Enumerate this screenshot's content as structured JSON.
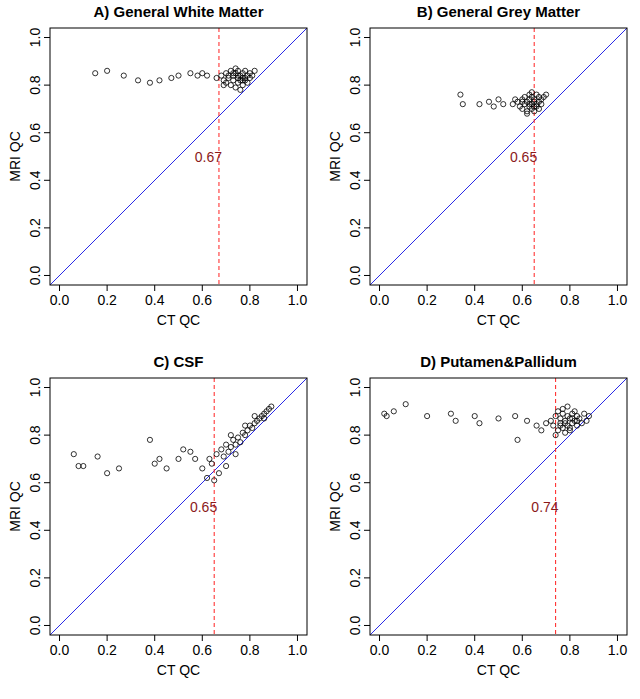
{
  "chart_data": [
    {
      "type": "scatter",
      "title": "A) General White Matter",
      "x_label": "CT QC",
      "y_label": "MRI QC",
      "x": [
        0.15,
        0.2,
        0.27,
        0.33,
        0.38,
        0.42,
        0.47,
        0.5,
        0.55,
        0.58,
        0.6,
        0.62,
        0.66,
        0.68,
        0.69,
        0.7,
        0.7,
        0.71,
        0.72,
        0.72,
        0.73,
        0.73,
        0.74,
        0.74,
        0.75,
        0.75,
        0.75,
        0.76,
        0.76,
        0.77,
        0.77,
        0.77,
        0.78,
        0.78,
        0.79,
        0.79,
        0.8,
        0.8,
        0.81,
        0.82,
        0.71,
        0.74,
        0.76,
        0.78,
        0.73,
        0.69,
        0.75,
        0.77
      ],
      "y": [
        0.85,
        0.86,
        0.84,
        0.82,
        0.81,
        0.82,
        0.83,
        0.84,
        0.85,
        0.84,
        0.85,
        0.84,
        0.83,
        0.84,
        0.82,
        0.85,
        0.81,
        0.83,
        0.86,
        0.8,
        0.84,
        0.82,
        0.85,
        0.79,
        0.83,
        0.86,
        0.81,
        0.84,
        0.82,
        0.85,
        0.83,
        0.8,
        0.86,
        0.82,
        0.84,
        0.81,
        0.85,
        0.83,
        0.84,
        0.86,
        0.84,
        0.87,
        0.78,
        0.83,
        0.85,
        0.8,
        0.84,
        0.82
      ],
      "xlim": [
        -0.04,
        1.04
      ],
      "ylim": [
        -0.04,
        1.04
      ],
      "xticks": [
        {
          "value": 0,
          "label": "0.0"
        },
        0.2,
        0.4,
        0.6,
        0.8,
        {
          "value": 1,
          "label": "1.0"
        }
      ],
      "yticks": [
        {
          "value": 0,
          "label": "0.0"
        },
        0.2,
        0.4,
        0.6,
        0.8,
        {
          "value": 1,
          "label": "1.0"
        }
      ],
      "threshold": {
        "value": 0.67,
        "label": "0.67"
      },
      "color": "#000000",
      "marker": "circle",
      "grid": false
    },
    {
      "type": "scatter",
      "title": "B) General Grey Matter",
      "x_label": "CT QC",
      "y_label": "MRI QC",
      "x": [
        0.34,
        0.35,
        0.42,
        0.46,
        0.48,
        0.5,
        0.52,
        0.56,
        0.58,
        0.59,
        0.6,
        0.6,
        0.61,
        0.61,
        0.62,
        0.62,
        0.63,
        0.63,
        0.63,
        0.64,
        0.64,
        0.64,
        0.65,
        0.65,
        0.65,
        0.66,
        0.66,
        0.67,
        0.67,
        0.68,
        0.68,
        0.69,
        0.7,
        0.62,
        0.64,
        0.66,
        0.6,
        0.57,
        0.63,
        0.65,
        0.67
      ],
      "y": [
        0.76,
        0.72,
        0.72,
        0.73,
        0.71,
        0.74,
        0.72,
        0.72,
        0.73,
        0.71,
        0.74,
        0.7,
        0.72,
        0.75,
        0.73,
        0.69,
        0.71,
        0.74,
        0.76,
        0.72,
        0.7,
        0.75,
        0.73,
        0.71,
        0.74,
        0.72,
        0.76,
        0.73,
        0.7,
        0.74,
        0.72,
        0.75,
        0.76,
        0.68,
        0.77,
        0.71,
        0.73,
        0.74,
        0.72,
        0.69,
        0.75
      ],
      "xlim": [
        -0.04,
        1.04
      ],
      "ylim": [
        -0.04,
        1.04
      ],
      "xticks": [
        {
          "value": 0,
          "label": "0.0"
        },
        0.2,
        0.4,
        0.6,
        0.8,
        {
          "value": 1,
          "label": "1.0"
        }
      ],
      "yticks": [
        {
          "value": 0,
          "label": "0.0"
        },
        0.2,
        0.4,
        0.6,
        0.8,
        {
          "value": 1,
          "label": "1.0"
        }
      ],
      "threshold": {
        "value": 0.65,
        "label": "0.65"
      },
      "color": "#000000",
      "marker": "circle",
      "grid": false
    },
    {
      "type": "scatter",
      "title": "C) CSF",
      "x_label": "CT QC",
      "y_label": "MRI QC",
      "x": [
        0.06,
        0.08,
        0.1,
        0.16,
        0.2,
        0.25,
        0.38,
        0.4,
        0.42,
        0.45,
        0.5,
        0.52,
        0.55,
        0.57,
        0.6,
        0.62,
        0.63,
        0.64,
        0.66,
        0.67,
        0.68,
        0.69,
        0.7,
        0.71,
        0.72,
        0.73,
        0.74,
        0.75,
        0.76,
        0.77,
        0.78,
        0.79,
        0.8,
        0.81,
        0.82,
        0.83,
        0.84,
        0.85,
        0.86,
        0.87,
        0.88,
        0.89,
        0.7,
        0.74,
        0.78,
        0.82,
        0.86,
        0.65,
        0.72
      ],
      "y": [
        0.72,
        0.67,
        0.67,
        0.71,
        0.64,
        0.66,
        0.78,
        0.68,
        0.7,
        0.66,
        0.7,
        0.74,
        0.73,
        0.7,
        0.66,
        0.62,
        0.7,
        0.68,
        0.72,
        0.64,
        0.74,
        0.71,
        0.76,
        0.73,
        0.75,
        0.78,
        0.76,
        0.79,
        0.77,
        0.81,
        0.8,
        0.82,
        0.84,
        0.83,
        0.85,
        0.86,
        0.87,
        0.88,
        0.89,
        0.9,
        0.91,
        0.92,
        0.67,
        0.72,
        0.84,
        0.88,
        0.87,
        0.61,
        0.8
      ],
      "xlim": [
        -0.04,
        1.04
      ],
      "ylim": [
        -0.04,
        1.04
      ],
      "xticks": [
        {
          "value": 0,
          "label": "0.0"
        },
        0.2,
        0.4,
        0.6,
        0.8,
        {
          "value": 1,
          "label": "1.0"
        }
      ],
      "yticks": [
        {
          "value": 0,
          "label": "0.0"
        },
        0.2,
        0.4,
        0.6,
        0.8,
        {
          "value": 1,
          "label": "1.0"
        }
      ],
      "threshold": {
        "value": 0.65,
        "label": "0.65"
      },
      "color": "#000000",
      "marker": "circle",
      "grid": false
    },
    {
      "type": "scatter",
      "title": "D) Putamen&Pallidum",
      "x_label": "CT QC",
      "y_label": "MRI QC",
      "x": [
        0.02,
        0.03,
        0.06,
        0.11,
        0.2,
        0.3,
        0.32,
        0.4,
        0.42,
        0.5,
        0.57,
        0.58,
        0.62,
        0.66,
        0.68,
        0.7,
        0.72,
        0.73,
        0.74,
        0.75,
        0.75,
        0.76,
        0.76,
        0.77,
        0.77,
        0.78,
        0.78,
        0.79,
        0.79,
        0.8,
        0.8,
        0.81,
        0.81,
        0.82,
        0.82,
        0.83,
        0.83,
        0.84,
        0.85,
        0.86,
        0.87,
        0.88,
        0.74,
        0.77,
        0.8,
        0.83,
        0.79,
        0.76,
        0.81,
        0.78
      ],
      "y": [
        0.89,
        0.88,
        0.9,
        0.93,
        0.88,
        0.89,
        0.86,
        0.88,
        0.85,
        0.87,
        0.88,
        0.78,
        0.86,
        0.84,
        0.82,
        0.85,
        0.86,
        0.84,
        0.88,
        0.82,
        0.9,
        0.85,
        0.87,
        0.83,
        0.89,
        0.86,
        0.81,
        0.88,
        0.84,
        0.87,
        0.82,
        0.89,
        0.85,
        0.86,
        0.9,
        0.84,
        0.88,
        0.87,
        0.85,
        0.89,
        0.86,
        0.88,
        0.8,
        0.91,
        0.83,
        0.86,
        0.92,
        0.84,
        0.87,
        0.85
      ],
      "xlim": [
        -0.04,
        1.04
      ],
      "ylim": [
        -0.04,
        1.04
      ],
      "xticks": [
        {
          "value": 0,
          "label": "0.0"
        },
        0.2,
        0.4,
        0.6,
        0.8,
        {
          "value": 1,
          "label": "1.0"
        }
      ],
      "yticks": [
        {
          "value": 0,
          "label": "0.0"
        },
        0.2,
        0.4,
        0.6,
        0.8,
        {
          "value": 1,
          "label": "1.0"
        }
      ],
      "threshold": {
        "value": 0.74,
        "label": "0.74"
      },
      "color": "#000000",
      "marker": "circle",
      "grid": false
    }
  ]
}
